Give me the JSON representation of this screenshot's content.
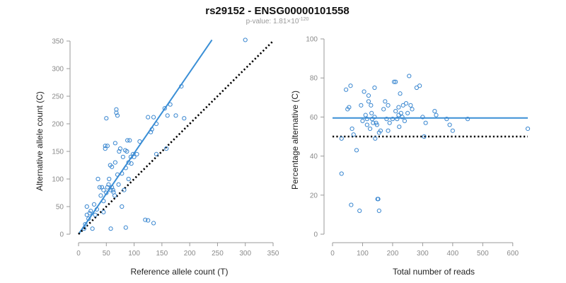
{
  "figure": {
    "title": "rs29152 - ENSG00000101558",
    "pvalue_label": "p-value: 1.81×10",
    "pvalue_exponent": "-120"
  },
  "colors": {
    "points": "#3a87d0",
    "fit_line": "#3a8fd6",
    "reference_line": "#000000",
    "axis": "#9a9a9a",
    "tick_text": "#8a8a8a"
  },
  "chart_data": [
    {
      "type": "scatter",
      "title": "",
      "xlabel": "Reference allele count (T)",
      "ylabel": "Alternative allele count (C)",
      "xlim": [
        0,
        350
      ],
      "ylim": [
        0,
        350
      ],
      "xticks": [
        0,
        50,
        100,
        150,
        200,
        250,
        300,
        350
      ],
      "yticks": [
        0,
        50,
        100,
        150,
        200,
        250,
        300,
        350
      ],
      "points": [
        [
          10,
          10
        ],
        [
          12,
          18
        ],
        [
          15,
          50
        ],
        [
          15,
          35
        ],
        [
          18,
          28
        ],
        [
          20,
          38
        ],
        [
          22,
          42
        ],
        [
          25,
          10
        ],
        [
          28,
          54
        ],
        [
          30,
          35
        ],
        [
          33,
          45
        ],
        [
          35,
          100
        ],
        [
          38,
          85
        ],
        [
          40,
          70
        ],
        [
          42,
          85
        ],
        [
          45,
          80
        ],
        [
          45,
          60
        ],
        [
          45,
          40
        ],
        [
          48,
          160
        ],
        [
          48,
          155
        ],
        [
          50,
          210
        ],
        [
          50,
          75
        ],
        [
          52,
          160
        ],
        [
          52,
          85
        ],
        [
          54,
          90
        ],
        [
          55,
          100
        ],
        [
          57,
          125
        ],
        [
          58,
          10
        ],
        [
          58,
          80
        ],
        [
          60,
          122
        ],
        [
          60,
          85
        ],
        [
          62,
          80
        ],
        [
          63,
          76
        ],
        [
          65,
          70
        ],
        [
          66,
          165
        ],
        [
          66,
          130
        ],
        [
          68,
          226
        ],
        [
          68,
          220
        ],
        [
          70,
          215
        ],
        [
          70,
          108
        ],
        [
          72,
          90
        ],
        [
          73,
          150
        ],
        [
          75,
          155
        ],
        [
          78,
          110
        ],
        [
          78,
          50
        ],
        [
          80,
          140
        ],
        [
          82,
          80
        ],
        [
          84,
          152
        ],
        [
          85,
          12
        ],
        [
          85,
          120
        ],
        [
          87,
          150
        ],
        [
          88,
          170
        ],
        [
          90,
          130
        ],
        [
          90,
          100
        ],
        [
          92,
          170
        ],
        [
          94,
          140
        ],
        [
          95,
          128
        ],
        [
          98,
          145
        ],
        [
          100,
          140
        ],
        [
          105,
          145
        ],
        [
          110,
          168
        ],
        [
          120,
          26
        ],
        [
          125,
          25
        ],
        [
          125,
          212
        ],
        [
          130,
          185
        ],
        [
          132,
          190
        ],
        [
          135,
          212
        ],
        [
          135,
          20
        ],
        [
          140,
          200
        ],
        [
          140,
          145
        ],
        [
          155,
          228
        ],
        [
          158,
          155
        ],
        [
          160,
          215
        ],
        [
          165,
          235
        ],
        [
          175,
          215
        ],
        [
          185,
          268
        ],
        [
          190,
          210
        ],
        [
          300,
          352
        ]
      ],
      "series": [
        {
          "name": "fit",
          "style": "solid",
          "x": [
            0,
            240
          ],
          "y": [
            0,
            352
          ]
        },
        {
          "name": "reference",
          "style": "dotted",
          "x": [
            0,
            350
          ],
          "y": [
            0,
            350
          ]
        }
      ]
    },
    {
      "type": "scatter",
      "title": "",
      "xlabel": "Total number of reads",
      "ylabel": "Percentage alternative (C)",
      "xlim": [
        0,
        650
      ],
      "ylim": [
        0,
        100
      ],
      "xticks": [
        0,
        100,
        200,
        300,
        400,
        500,
        600
      ],
      "yticks": [
        0,
        20,
        40,
        60,
        80,
        100
      ],
      "points": [
        [
          30,
          49
        ],
        [
          30,
          31
        ],
        [
          45,
          74
        ],
        [
          50,
          64
        ],
        [
          55,
          65
        ],
        [
          60,
          76
        ],
        [
          62,
          15
        ],
        [
          65,
          54
        ],
        [
          70,
          51
        ],
        [
          80,
          43
        ],
        [
          90,
          12
        ],
        [
          95,
          66
        ],
        [
          100,
          58
        ],
        [
          105,
          73
        ],
        [
          110,
          61
        ],
        [
          115,
          59
        ],
        [
          115,
          56
        ],
        [
          120,
          71
        ],
        [
          120,
          68
        ],
        [
          125,
          54
        ],
        [
          128,
          66
        ],
        [
          130,
          62
        ],
        [
          132,
          59
        ],
        [
          135,
          57
        ],
        [
          140,
          75
        ],
        [
          140,
          60
        ],
        [
          142,
          49
        ],
        [
          145,
          57
        ],
        [
          148,
          56
        ],
        [
          150,
          18
        ],
        [
          152,
          18
        ],
        [
          155,
          52
        ],
        [
          155,
          12
        ],
        [
          160,
          53
        ],
        [
          170,
          64
        ],
        [
          175,
          68
        ],
        [
          180,
          59
        ],
        [
          185,
          66
        ],
        [
          185,
          53
        ],
        [
          190,
          57
        ],
        [
          200,
          59
        ],
        [
          205,
          78
        ],
        [
          210,
          78
        ],
        [
          210,
          63
        ],
        [
          215,
          59
        ],
        [
          220,
          65
        ],
        [
          220,
          61
        ],
        [
          222,
          55
        ],
        [
          225,
          72
        ],
        [
          228,
          62
        ],
        [
          232,
          60
        ],
        [
          235,
          66
        ],
        [
          240,
          58
        ],
        [
          245,
          67
        ],
        [
          250,
          62
        ],
        [
          255,
          81
        ],
        [
          260,
          66
        ],
        [
          265,
          64
        ],
        [
          280,
          75
        ],
        [
          290,
          76
        ],
        [
          300,
          60
        ],
        [
          305,
          50
        ],
        [
          310,
          57
        ],
        [
          340,
          63
        ],
        [
          345,
          61
        ],
        [
          380,
          59
        ],
        [
          390,
          56
        ],
        [
          400,
          53
        ],
        [
          450,
          59
        ],
        [
          650,
          54
        ]
      ],
      "series": [
        {
          "name": "fit",
          "style": "solid",
          "x": [
            0,
            650
          ],
          "y": [
            59.5,
            59.5
          ]
        },
        {
          "name": "reference",
          "style": "dotted",
          "x": [
            0,
            650
          ],
          "y": [
            50,
            50
          ]
        }
      ]
    }
  ]
}
